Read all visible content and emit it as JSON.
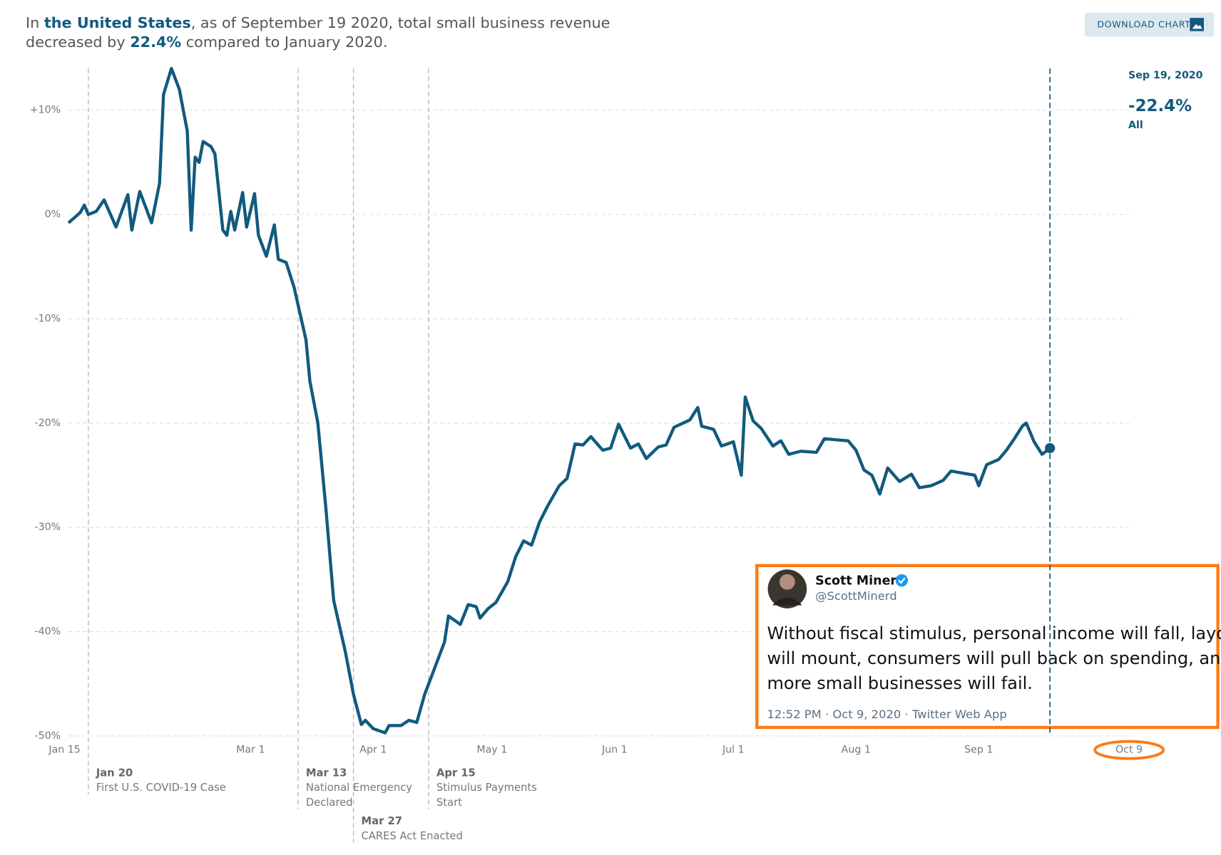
{
  "header": {
    "parts": [
      "In ",
      "the United States",
      ", as of September 19 2020, total small business revenue",
      "decreased by ",
      "22.4%",
      " compared to January 2020."
    ],
    "button": "DOWNLOAD CHART"
  },
  "chart_data": {
    "type": "line",
    "x": [
      "Jan 15",
      "Jan 18",
      "Jan 19",
      "Jan 20",
      "Jan 22",
      "Jan 24",
      "Jan 27",
      "Jan 30",
      "Jan 31",
      "Feb 2",
      "Feb 5",
      "Feb 7",
      "Feb 8",
      "Feb 10",
      "Feb 12",
      "Feb 14",
      "Feb 15",
      "Feb 16",
      "Feb 17",
      "Feb 18",
      "Feb 20",
      "Feb 21",
      "Feb 23",
      "Feb 24",
      "Feb 25",
      "Feb 26",
      "Feb 28",
      "Feb 29",
      "Mar 2",
      "Mar 3",
      "Mar 5",
      "Mar 7",
      "Mar 8",
      "Mar 10",
      "Mar 12",
      "Mar 15",
      "Mar 16",
      "Mar 18",
      "Mar 20",
      "Mar 22",
      "Mar 25",
      "Mar 27",
      "Mar 29",
      "Mar 30",
      "Apr 1",
      "Apr 4",
      "Apr 5",
      "Apr 8",
      "Apr 10",
      "Apr 12",
      "Apr 14",
      "Apr 16",
      "Apr 19",
      "Apr 20",
      "Apr 23",
      "Apr 25",
      "Apr 27",
      "Apr 28",
      "Apr 30",
      "May 2",
      "May 5",
      "May 7",
      "May 9",
      "May 11",
      "May 13",
      "May 15",
      "May 18",
      "May 20",
      "May 22",
      "May 24",
      "May 26",
      "May 29",
      "May 31",
      "Jun 2",
      "Jun 5",
      "Jun 7",
      "Jun 9",
      "Jun 12",
      "Jun 14",
      "Jun 16",
      "Jun 20",
      "Jun 22",
      "Jun 23",
      "Jun 26",
      "Jun 28",
      "Jul 1",
      "Jul 3",
      "Jul 4",
      "Jul 6",
      "Jul 8",
      "Jul 11",
      "Jul 13",
      "Jul 15",
      "Jul 18",
      "Jul 22",
      "Jul 24",
      "Jul 27",
      "Jul 30",
      "Aug 1",
      "Aug 3",
      "Aug 5",
      "Aug 7",
      "Aug 9",
      "Aug 12",
      "Aug 15",
      "Aug 17",
      "Aug 20",
      "Aug 23",
      "Aug 25",
      "Aug 28",
      "Aug 31",
      "Sep 1",
      "Sep 3",
      "Sep 6",
      "Sep 8",
      "Sep 10",
      "Sep 12",
      "Sep 13",
      "Sep 15",
      "Sep 17",
      "Sep 19"
    ],
    "series": [
      {
        "name": "All",
        "color": "#115a7e",
        "values": [
          -0.8,
          0.2,
          0.9,
          0,
          0.3,
          1.4,
          -1.2,
          1.9,
          -1.5,
          2.2,
          -0.8,
          3,
          11.5,
          14,
          12,
          8,
          -1.5,
          5.5,
          5,
          7,
          6.5,
          5.8,
          -1.5,
          -2,
          0.3,
          -1.5,
          2.1,
          -1.2,
          2,
          -2,
          -4,
          -1,
          -4.3,
          -4.6,
          -7,
          -12,
          -16,
          -20,
          -28,
          -37,
          -42,
          -46,
          -48.9,
          -48.5,
          -49.3,
          -49.7,
          -49,
          -49,
          -48.5,
          -48.7,
          -46,
          -44,
          -41,
          -38.5,
          -39.3,
          -37.4,
          -37.6,
          -38.7,
          -37.8,
          -37.2,
          -35.2,
          -32.8,
          -31.3,
          -31.7,
          -29.5,
          -28,
          -26,
          -25.3,
          -22,
          -22.1,
          -21.3,
          -22.6,
          -22.4,
          -20.1,
          -22.4,
          -22,
          -23.4,
          -22.3,
          -22.1,
          -20.4,
          -19.7,
          -18.5,
          -20.3,
          -20.6,
          -22.2,
          -21.8,
          -25,
          -17.5,
          -19.8,
          -20.5,
          -22.2,
          -21.7,
          -23,
          -22.7,
          -22.8,
          -21.5,
          -21.6,
          -21.7,
          -22.6,
          -24.5,
          -25,
          -26.8,
          -24.3,
          -25.6,
          -24.9,
          -26.2,
          -26,
          -25.5,
          -24.6,
          -24.8,
          -25,
          -26,
          -24,
          -23.5,
          -22.6,
          -21.5,
          -20.3,
          -20,
          -21.8,
          -23,
          -22.4
        ]
      }
    ],
    "xlim": [
      "Jan 15",
      "Oct 9"
    ],
    "xticks": [
      "Jan 15",
      "Mar 1",
      "Apr 1",
      "May 1",
      "Jun 1",
      "Jul 1",
      "Aug 1",
      "Sep 1",
      "Oct 9"
    ],
    "ylim": [
      -50,
      14
    ],
    "yticks": [
      {
        "value": 10,
        "label": "+10%"
      },
      {
        "value": 0,
        "label": "0%"
      },
      {
        "value": -10,
        "label": "-10%"
      },
      {
        "value": -20,
        "label": "-20%"
      },
      {
        "value": -30,
        "label": "-30%"
      },
      {
        "value": -40,
        "label": "-40%"
      },
      {
        "value": -50,
        "label": "-50%"
      }
    ],
    "grid": true,
    "events": [
      {
        "date": "Jan 20",
        "lines": [
          "First U.S. COVID-19 Case"
        ]
      },
      {
        "date": "Mar 13",
        "lines": [
          "National Emergency",
          "Declared"
        ]
      },
      {
        "date": "Mar 27",
        "lines": [
          "CARES Act Enacted"
        ]
      },
      {
        "date": "Apr 15",
        "lines": [
          "Stimulus Payments",
          "Start"
        ]
      }
    ],
    "hover": {
      "date": "Sep 19, 2020",
      "label": "-22.4%"
    }
  },
  "tweet": {
    "name": "Scott Minerd",
    "handle": "@ScottMinerd",
    "lines": [
      "Without fiscal stimulus, personal income will fall, layoffs",
      "will mount, consumers will pull back on spending, and",
      "more small businesses will fail."
    ],
    "meta": "12:52 PM · Oct 9, 2020 · Twitter Web App"
  }
}
